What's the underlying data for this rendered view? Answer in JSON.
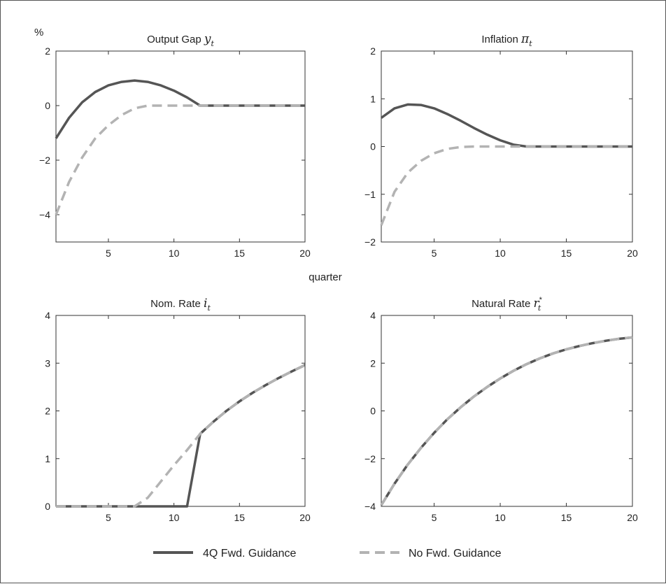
{
  "chart_data": {
    "type": "line",
    "y_unit_label": "%",
    "x_label": "quarter",
    "legend": {
      "position": "bottom",
      "entries": [
        {
          "label": "4Q Fwd. Guidance",
          "color": "#555555",
          "style": "solid"
        },
        {
          "label": "No Fwd. Guidance",
          "color": "#b3b3b3",
          "style": "dashed"
        }
      ]
    },
    "colors": {
      "fwd": "#555555",
      "nofwd": "#b3b3b3"
    },
    "panels": [
      {
        "title": "Output Gap",
        "title_symbol": "y",
        "title_sub": "t",
        "title_sup": "",
        "xlim": [
          1,
          20
        ],
        "ylim": [
          -5,
          2
        ],
        "xticks": [
          5,
          10,
          15,
          20
        ],
        "xtick_labels": [
          "5",
          "10",
          "15",
          "20"
        ],
        "yticks": [
          -4,
          -2,
          0,
          2
        ],
        "ytick_labels": [
          "−4",
          "−2",
          "0",
          "2"
        ],
        "x": [
          1,
          2,
          3,
          4,
          5,
          6,
          7,
          8,
          9,
          10,
          11,
          12,
          13,
          14,
          15,
          16,
          17,
          18,
          19,
          20
        ],
        "series": [
          {
            "name": "4Q Fwd. Guidance",
            "values": [
              -1.2,
              -0.45,
              0.12,
              0.5,
              0.74,
              0.87,
              0.92,
              0.87,
              0.74,
              0.55,
              0.3,
              0,
              0,
              0,
              0,
              0,
              0,
              0,
              0,
              0
            ]
          },
          {
            "name": "No Fwd. Guidance",
            "values": [
              -4.0,
              -2.8,
              -1.9,
              -1.2,
              -0.72,
              -0.35,
              -0.1,
              0,
              0,
              0,
              0,
              0,
              0,
              0,
              0,
              0,
              0,
              0,
              0,
              0
            ]
          }
        ]
      },
      {
        "title": "Inflation",
        "title_symbol": "π",
        "title_sub": "t",
        "title_sup": "",
        "xlim": [
          1,
          20
        ],
        "ylim": [
          -2,
          2
        ],
        "xticks": [
          5,
          10,
          15,
          20
        ],
        "xtick_labels": [
          "5",
          "10",
          "15",
          "20"
        ],
        "yticks": [
          -2,
          -1,
          0,
          1,
          2
        ],
        "ytick_labels": [
          "−2",
          "−1",
          "0",
          "1",
          "2"
        ],
        "x": [
          1,
          2,
          3,
          4,
          5,
          6,
          7,
          8,
          9,
          10,
          11,
          12,
          13,
          14,
          15,
          16,
          17,
          18,
          19,
          20
        ],
        "series": [
          {
            "name": "4Q Fwd. Guidance",
            "values": [
              0.6,
              0.8,
              0.88,
              0.87,
              0.8,
              0.68,
              0.54,
              0.39,
              0.25,
              0.13,
              0.04,
              0,
              0,
              0,
              0,
              0,
              0,
              0,
              0,
              0
            ]
          },
          {
            "name": "No Fwd. Guidance",
            "values": [
              -1.65,
              -0.95,
              -0.55,
              -0.3,
              -0.14,
              -0.05,
              -0.01,
              0,
              0,
              0,
              0,
              0,
              0,
              0,
              0,
              0,
              0,
              0,
              0,
              0
            ]
          }
        ]
      },
      {
        "title": "Nom. Rate",
        "title_symbol": "i",
        "title_sub": "t",
        "title_sup": "",
        "xlim": [
          1,
          20
        ],
        "ylim": [
          0,
          4
        ],
        "xticks": [
          5,
          10,
          15,
          20
        ],
        "xtick_labels": [
          "5",
          "10",
          "15",
          "20"
        ],
        "yticks": [
          0,
          1,
          2,
          3,
          4
        ],
        "ytick_labels": [
          "0",
          "1",
          "2",
          "3",
          "4"
        ],
        "x": [
          1,
          2,
          3,
          4,
          5,
          6,
          7,
          8,
          9,
          10,
          11,
          12,
          13,
          14,
          15,
          16,
          17,
          18,
          19,
          20
        ],
        "series": [
          {
            "name": "4Q Fwd. Guidance",
            "values": [
              0,
              0,
              0,
              0,
              0,
              0,
              0,
              0,
              0,
              0,
              0,
              1.52,
              1.77,
              2.0,
              2.2,
              2.38,
              2.54,
              2.69,
              2.83,
              2.96
            ]
          },
          {
            "name": "No Fwd. Guidance",
            "values": [
              0,
              0,
              0,
              0,
              0,
              0,
              0,
              0.18,
              0.52,
              0.86,
              1.18,
              1.52,
              1.77,
              2.0,
              2.2,
              2.38,
              2.54,
              2.69,
              2.83,
              2.96
            ]
          }
        ]
      },
      {
        "title": "Natural Rate",
        "title_symbol": "r",
        "title_sub": "t",
        "title_sup": "*",
        "xlim": [
          1,
          20
        ],
        "ylim": [
          -4,
          4
        ],
        "xticks": [
          5,
          10,
          15,
          20
        ],
        "xtick_labels": [
          "5",
          "10",
          "15",
          "20"
        ],
        "yticks": [
          -4,
          -2,
          0,
          2,
          4
        ],
        "ytick_labels": [
          "−4",
          "−2",
          "0",
          "2",
          "4"
        ],
        "x": [
          1,
          2,
          3,
          4,
          5,
          6,
          7,
          8,
          9,
          10,
          11,
          12,
          13,
          14,
          15,
          16,
          17,
          18,
          19,
          20
        ],
        "series": [
          {
            "name": "4Q Fwd. Guidance",
            "values": [
              -3.95,
              -3.05,
              -2.25,
              -1.55,
              -0.92,
              -0.35,
              0.15,
              0.6,
              1.0,
              1.36,
              1.68,
              1.96,
              2.2,
              2.41,
              2.58,
              2.72,
              2.84,
              2.94,
              3.02,
              3.08
            ]
          },
          {
            "name": "No Fwd. Guidance",
            "values": [
              -3.95,
              -3.05,
              -2.25,
              -1.55,
              -0.92,
              -0.35,
              0.15,
              0.6,
              1.0,
              1.36,
              1.68,
              1.96,
              2.2,
              2.41,
              2.58,
              2.72,
              2.84,
              2.94,
              3.02,
              3.08
            ]
          }
        ]
      }
    ]
  }
}
